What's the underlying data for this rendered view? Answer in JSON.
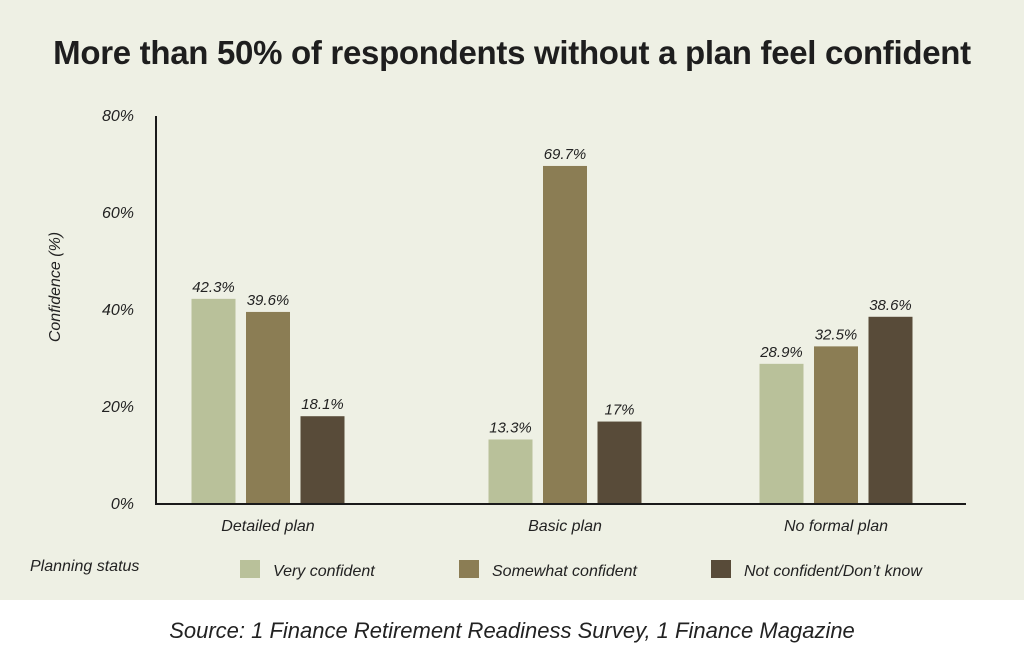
{
  "title": "More than 50% of respondents without a plan feel confident",
  "source": "Source: 1 Finance Retirement Readiness Survey, 1 Finance Magazine",
  "chart_data": {
    "type": "bar",
    "title": "More than 50% of respondents without a plan feel confident",
    "xlabel": "Planning status",
    "ylabel": "Confidence (%)",
    "ylim": [
      0,
      80
    ],
    "yticks": [
      0,
      20,
      40,
      60,
      80
    ],
    "ytick_labels": [
      "0%",
      "20%",
      "40%",
      "60%",
      "80%"
    ],
    "categories": [
      "Detailed plan",
      "Basic plan",
      "No formal plan"
    ],
    "series": [
      {
        "name": "Very confident",
        "values": [
          42.3,
          13.3,
          28.9
        ],
        "labels": [
          "42.3%",
          "13.3%",
          "28.9%"
        ],
        "color": "#b9c19a"
      },
      {
        "name": "Somewhat confident",
        "values": [
          39.6,
          69.7,
          32.5
        ],
        "labels": [
          "39.6%",
          "69.7%",
          "32.5%"
        ],
        "color": "#8b7d54"
      },
      {
        "name": "Not confident/Don’t know",
        "values": [
          18.1,
          17,
          38.6
        ],
        "labels": [
          "18.1%",
          "17%",
          "38.6%"
        ],
        "color": "#584b39"
      }
    ],
    "grid": false,
    "legend_position": "bottom"
  }
}
